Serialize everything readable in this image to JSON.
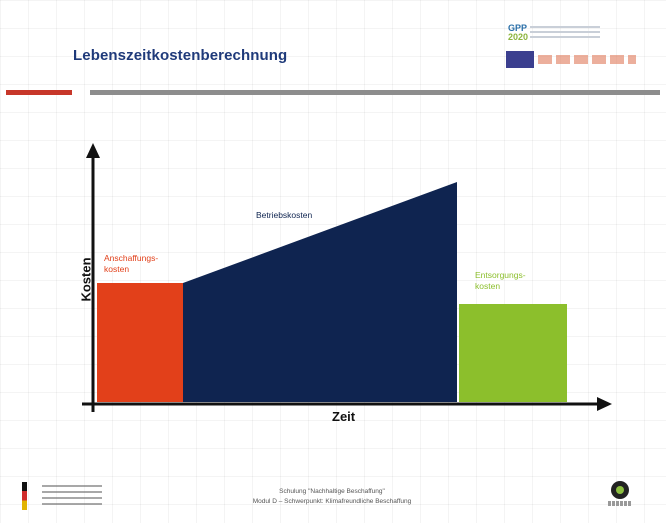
{
  "slide": {
    "title": "Lebenszeitkostenberechnung",
    "footer_line1": "Schulung \"Nachhaltige Beschaffung\"",
    "footer_line2": "Modul D – Schwerpunkt: Klimafreundliche Beschaffung"
  },
  "logos": {
    "gpp_mark": "GPP",
    "gpp_sub": "2020"
  },
  "diagram": {
    "axis_y": "Kosten",
    "axis_x": "Zeit",
    "blocks": [
      {
        "id": "anschaffung",
        "label_line1": "Anschaffungs-",
        "label_line2": "kosten",
        "color": "#e2401a"
      },
      {
        "id": "betrieb",
        "label_line1": "Betriebskosten",
        "color": "#0f2450"
      },
      {
        "id": "entsorgung",
        "label_line1": "Entsorgungs-",
        "label_line2": "kosten",
        "color": "#8cbf2c"
      }
    ]
  },
  "colors": {
    "title": "#1f3a7a",
    "accent_red": "#c7372a",
    "divider_gray": "#8d8d8d"
  }
}
